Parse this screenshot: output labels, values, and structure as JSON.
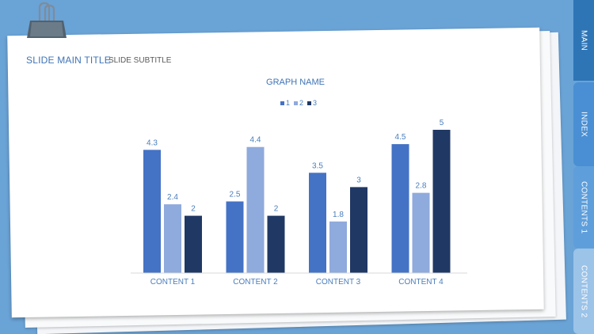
{
  "slide": {
    "title": "SLIDE MAIN TITLE",
    "subtitle": "SLIDE SUBTITLE"
  },
  "tabs": [
    {
      "label": "MAIN"
    },
    {
      "label": "INDEX"
    },
    {
      "label": "CONTENTS 1"
    },
    {
      "label": "CONTENTS 2"
    }
  ],
  "colors": {
    "background": "#6aa3d6",
    "title": "#3f74b6",
    "series1": "#4472c4",
    "series2": "#8faadc",
    "series3": "#203864"
  },
  "chart_data": {
    "type": "bar",
    "title": "GRAPH NAME",
    "categories": [
      "CONTENT 1",
      "CONTENT 2",
      "CONTENT 3",
      "CONTENT 4"
    ],
    "series": [
      {
        "name": "1",
        "values": [
          4.3,
          2.5,
          3.5,
          4.5
        ],
        "color": "#4472c4"
      },
      {
        "name": "2",
        "values": [
          2.4,
          4.4,
          1.8,
          2.8
        ],
        "color": "#8faadc"
      },
      {
        "name": "3",
        "values": [
          2,
          2,
          3,
          5
        ],
        "color": "#203864"
      }
    ],
    "ylim": [
      0,
      5
    ],
    "legend": "top-center",
    "grid": false
  }
}
